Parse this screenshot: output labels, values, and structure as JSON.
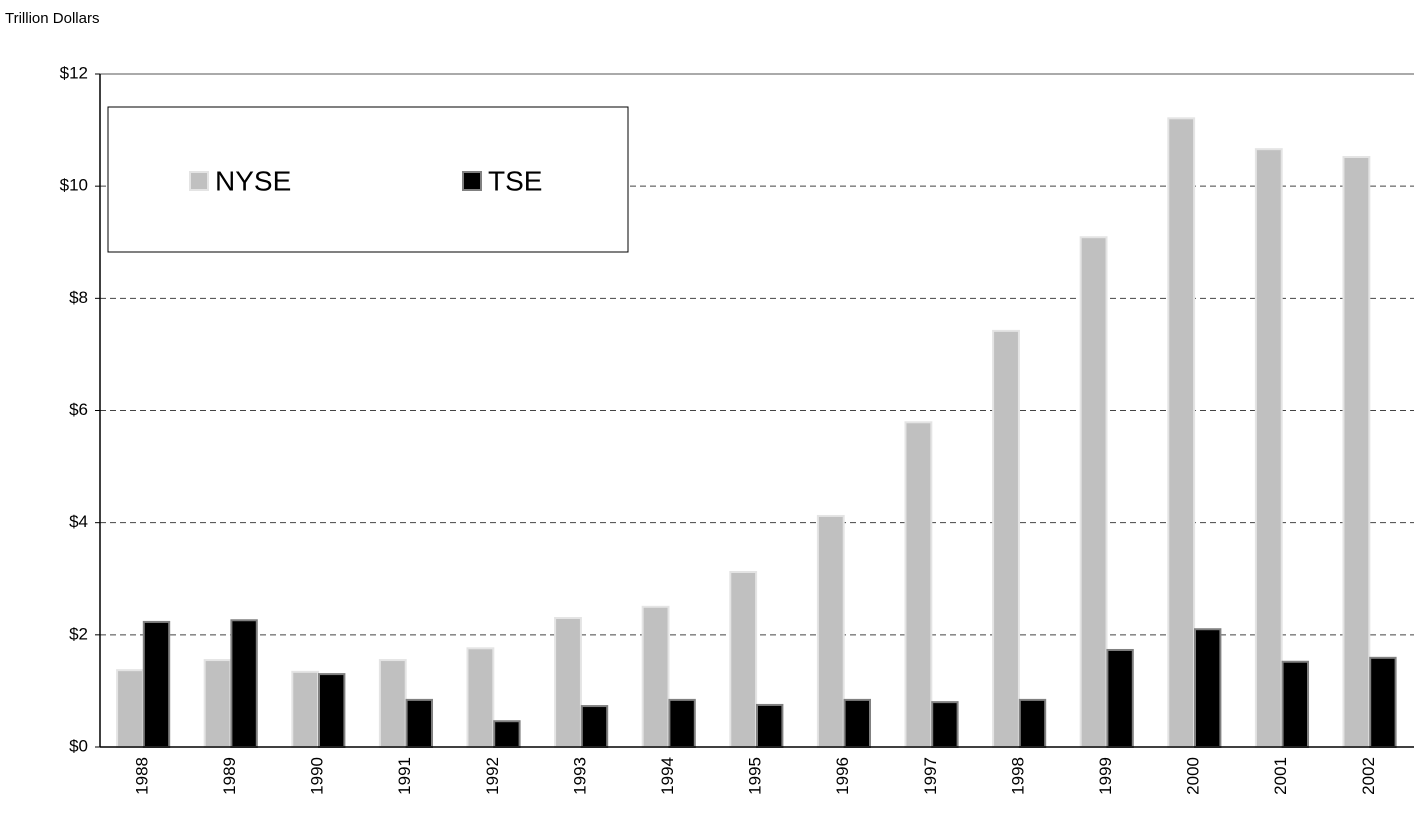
{
  "chart_data": {
    "type": "bar",
    "ylabel": "Trillion Dollars",
    "categories": [
      "1988",
      "1989",
      "1990",
      "1991",
      "1992",
      "1993",
      "1994",
      "1995",
      "1996",
      "1997",
      "1998",
      "1999",
      "2000",
      "2001",
      "2002"
    ],
    "series": [
      {
        "name": "NYSE",
        "color": "#c0c0c0",
        "values": [
          1.37,
          1.55,
          1.34,
          1.55,
          1.76,
          2.3,
          2.5,
          3.12,
          4.12,
          5.79,
          7.42,
          9.09,
          11.21,
          10.66,
          10.52
        ]
      },
      {
        "name": "TSE",
        "color": "#000000",
        "values": [
          2.23,
          2.26,
          1.3,
          0.84,
          0.46,
          0.73,
          0.84,
          0.75,
          0.84,
          0.8,
          0.84,
          1.73,
          2.1,
          1.52,
          1.59
        ]
      }
    ],
    "ylim": [
      0,
      12
    ],
    "yticks": [
      {
        "value": 0,
        "label": "$0"
      },
      {
        "value": 2,
        "label": "$2"
      },
      {
        "value": 4,
        "label": "$4"
      },
      {
        "value": 6,
        "label": "$6"
      },
      {
        "value": 8,
        "label": "$8"
      },
      {
        "value": 10,
        "label": "$10"
      },
      {
        "value": 12,
        "label": "$12"
      }
    ],
    "grid": true,
    "legend": "upper left"
  }
}
